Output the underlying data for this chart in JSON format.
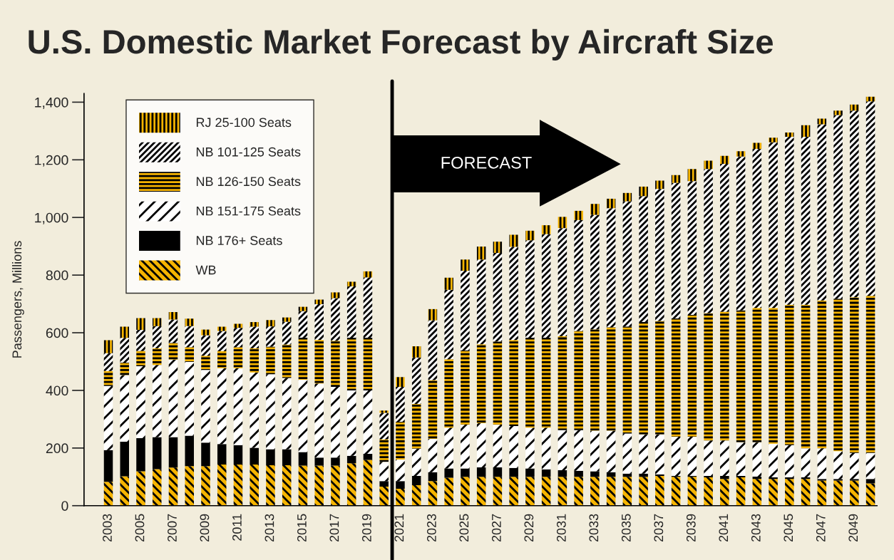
{
  "chart_data": {
    "type": "bar",
    "title": "U.S. Domestic Market Forecast by Aircraft Size",
    "ylabel": "Passengers, Millions",
    "x": [
      2003,
      2004,
      2005,
      2006,
      2007,
      2008,
      2009,
      2010,
      2011,
      2012,
      2013,
      2014,
      2015,
      2016,
      2017,
      2018,
      2019,
      2020,
      2021,
      2022,
      2023,
      2024,
      2025,
      2026,
      2027,
      2028,
      2029,
      2030,
      2031,
      2032,
      2033,
      2034,
      2035,
      2036,
      2037,
      2038,
      2039,
      2040,
      2041,
      2042,
      2043,
      2044,
      2045,
      2046,
      2047,
      2048,
      2049,
      2050
    ],
    "xlim": [
      2001.5,
      2050.4
    ],
    "xticks": [
      2003,
      2005,
      2007,
      2009,
      2011,
      2013,
      2015,
      2017,
      2019,
      2021,
      2023,
      2025,
      2027,
      2029,
      2031,
      2033,
      2035,
      2037,
      2039,
      2041,
      2043,
      2045,
      2047,
      2049
    ],
    "ylim": [
      0,
      1430
    ],
    "yticks": [
      0,
      200,
      400,
      600,
      800,
      {
        "value": 1000,
        "label": "1,000"
      },
      {
        "value": 1200,
        "label": "1,200"
      },
      {
        "value": 1400,
        "label": "1,400"
      }
    ],
    "stacked": true,
    "legend": "top left",
    "grid": false,
    "series": [
      {
        "name": "WB",
        "color": "#f5b400",
        "values": [
          83,
          102,
          119,
          127,
          132,
          137,
          137,
          143,
          143,
          143,
          140,
          140,
          139,
          139,
          139,
          147,
          159,
          66,
          59,
          71,
          85,
          97,
          100,
          100,
          100,
          100,
          100,
          100,
          100,
          100,
          100,
          100,
          100,
          100,
          103,
          100,
          100,
          98,
          93,
          98,
          93,
          93,
          93,
          93,
          87,
          87,
          87,
          77
        ]
      },
      {
        "name": "NB 176+ Seats",
        "color": "#000000",
        "values": [
          110,
          120,
          115,
          111,
          106,
          106,
          82,
          71,
          67,
          58,
          56,
          56,
          47,
          28,
          28,
          26,
          21,
          19,
          26,
          32,
          31,
          32,
          29,
          33,
          33,
          31,
          29,
          26,
          23,
          21,
          19,
          16,
          11,
          11,
          6,
          3,
          3,
          5,
          10,
          5,
          8,
          5,
          5,
          5,
          6,
          6,
          6,
          16
        ]
      },
      {
        "name": "NB 151-175 Seats",
        "color": "#ffffff",
        "values": [
          222,
          231,
          250,
          250,
          269,
          256,
          252,
          263,
          267,
          261,
          260,
          247,
          251,
          257,
          245,
          227,
          220,
          67,
          75,
          95,
          116,
          142,
          152,
          153,
          148,
          145,
          142,
          145,
          139,
          141,
          141,
          144,
          139,
          136,
          138,
          136,
          136,
          123,
          123,
          117,
          119,
          117,
          112,
          101,
          106,
          96,
          90,
          90
        ]
      },
      {
        "name": "NB 126-150 Seats",
        "color": "#f5b400",
        "values": [
          52,
          43,
          53,
          58,
          58,
          51,
          49,
          59,
          73,
          84,
          96,
          116,
          146,
          151,
          160,
          183,
          183,
          78,
          131,
          155,
          204,
          237,
          258,
          274,
          289,
          299,
          312,
          312,
          326,
          344,
          352,
          359,
          372,
          390,
          394,
          411,
          423,
          442,
          447,
          458,
          466,
          471,
          487,
          498,
          513,
          529,
          540,
          545
        ]
      },
      {
        "name": "NB 101-125 Seats",
        "color": "#ffffff",
        "values": [
          62,
          86,
          73,
          77,
          81,
          73,
          71,
          70,
          67,
          75,
          70,
          79,
          92,
          124,
          148,
          178,
          209,
          92,
          121,
          161,
          207,
          241,
          276,
          294,
          307,
          323,
          338,
          359,
          375,
          385,
          397,
          413,
          434,
          437,
          458,
          470,
          464,
          500,
          513,
          533,
          552,
          575,
          583,
          583,
          611,
          637,
          648,
          675
        ]
      },
      {
        "name": "RJ 25-100 Seats",
        "color": "#f5b400",
        "values": [
          45,
          39,
          41,
          28,
          26,
          26,
          20,
          15,
          14,
          16,
          22,
          15,
          15,
          16,
          20,
          16,
          21,
          8,
          34,
          39,
          39,
          42,
          39,
          45,
          39,
          42,
          33,
          31,
          39,
          32,
          38,
          33,
          29,
          33,
          29,
          27,
          42,
          29,
          28,
          19,
          21,
          16,
          15,
          40,
          20,
          16,
          21,
          16
        ]
      }
    ],
    "ref_lines": [
      {
        "axis": "x",
        "value": 2020.5,
        "color": "#000000"
      }
    ],
    "annotations": [
      "FORECAST"
    ]
  }
}
